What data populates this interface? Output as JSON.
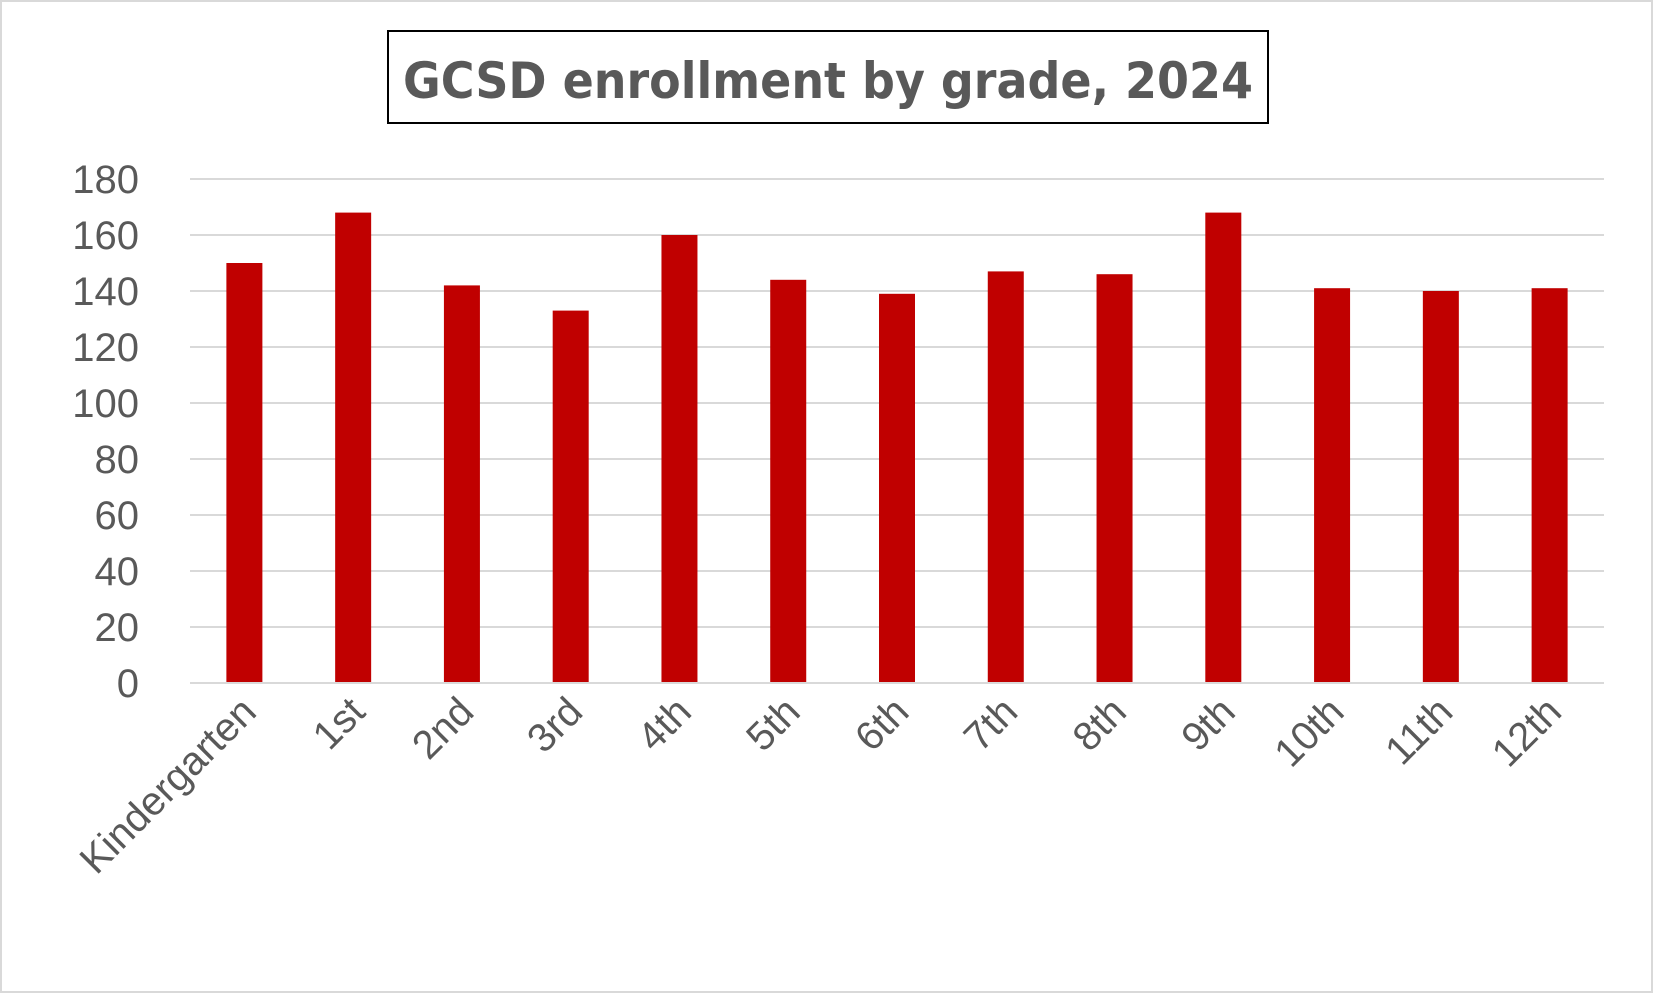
{
  "chart_data": {
    "type": "bar",
    "title": "GCSD enrollment by grade, 2024",
    "xlabel": "",
    "ylabel": "",
    "categories": [
      "Kindergarten",
      "1st",
      "2nd",
      "3rd",
      "4th",
      "5th",
      "6th",
      "7th",
      "8th",
      "9th",
      "10th",
      "11th",
      "12th"
    ],
    "values": [
      150,
      168,
      142,
      133,
      160,
      144,
      139,
      147,
      146,
      168,
      141,
      140,
      141
    ],
    "ylim": [
      0,
      180
    ],
    "yticks": [
      0,
      20,
      40,
      60,
      80,
      100,
      120,
      140,
      160,
      180
    ],
    "grid": true,
    "legend": "none",
    "bar_color": "#c00000",
    "text_color": "#595959",
    "grid_color": "#d9d9d9"
  }
}
